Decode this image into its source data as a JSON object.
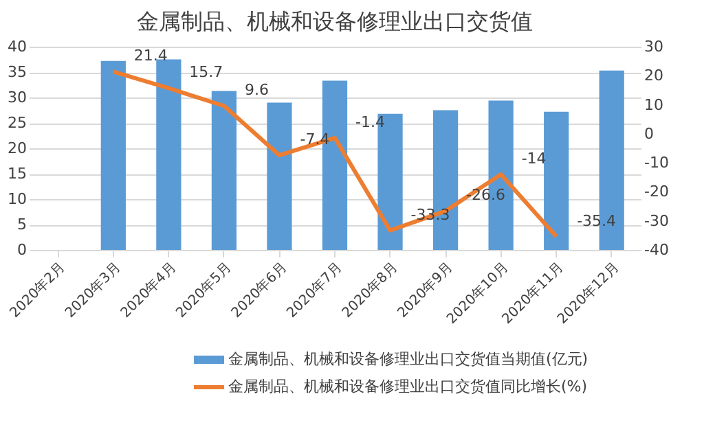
{
  "chart_data": {
    "type": "bar",
    "title": "金属制品、机械和设备修理业出口交货值",
    "categories": [
      "2020年2月",
      "2020年3月",
      "2020年4月",
      "2020年5月",
      "2020年6月",
      "2020年7月",
      "2020年8月",
      "2020年9月",
      "2020年10月",
      "2020年11月",
      "2020年12月"
    ],
    "series": [
      {
        "name": "金属制品、机械和设备修理业出口交货值当期值(亿元)",
        "color": "#5b9bd5",
        "values": [
          null,
          37.2,
          37.5,
          31.3,
          29.0,
          33.3,
          26.8,
          27.5,
          29.4,
          27.2,
          35.3
        ]
      },
      {
        "name": "金属制品、机械和设备修理业出口交货值同比增长(%)",
        "type": "line",
        "axis": "y2",
        "color": "#ed7d31",
        "values": [
          null,
          21.4,
          15.7,
          9.6,
          -7.4,
          -1.4,
          -33.3,
          -26.6,
          -14,
          -35.4,
          null
        ],
        "value_labels": [
          null,
          "21.4",
          "15.7",
          "9.6",
          "-7.4",
          "-1.4",
          "-33.3",
          "-26.6",
          "-14",
          "-35.4",
          null
        ]
      }
    ],
    "ylim": [
      0,
      40
    ],
    "yticks": [
      0,
      5,
      10,
      15,
      20,
      25,
      30,
      35,
      40
    ],
    "y2lim": [
      -40,
      30
    ],
    "y2ticks": [
      -40,
      -30,
      -20,
      -10,
      0,
      10,
      20,
      30
    ],
    "grid": "y",
    "legend": "bottom",
    "marker": "none"
  }
}
